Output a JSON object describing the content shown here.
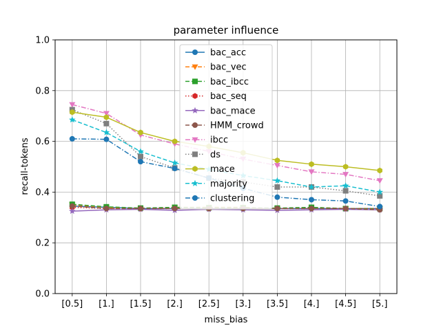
{
  "chart_data": {
    "type": "line",
    "title": "parameter influence",
    "xlabel": "miss_bias",
    "ylabel": "recall-tokens",
    "categories": [
      "[0.5]",
      "[1.]",
      "[1.5]",
      "[2.]",
      "[2.5]",
      "[3.]",
      "[3.5]",
      "[4.]",
      "[4.5]",
      "[5.]"
    ],
    "ylim": [
      0.0,
      1.0
    ],
    "yticks": [
      "0.0",
      "0.2",
      "0.4",
      "0.6",
      "0.8",
      "1.0"
    ],
    "grid": true,
    "legend_position": "upper center",
    "series": [
      {
        "name": "bac_acc",
        "color": "#1f77b4",
        "dash": "solid",
        "marker": "circle",
        "values": [
          0.345,
          0.34,
          0.335,
          0.335,
          0.335,
          0.335,
          0.335,
          0.335,
          0.335,
          0.335
        ]
      },
      {
        "name": "bac_vec",
        "color": "#ff7f0e",
        "dash": "dashed",
        "marker": "triangle-down",
        "values": [
          0.35,
          0.34,
          0.335,
          0.34,
          0.34,
          0.34,
          0.335,
          0.34,
          0.335,
          0.335
        ]
      },
      {
        "name": "bac_ibcc",
        "color": "#2ca02c",
        "dash": "dashed",
        "marker": "square",
        "values": [
          0.352,
          0.342,
          0.337,
          0.34,
          0.338,
          0.338,
          0.337,
          0.34,
          0.335,
          0.335
        ]
      },
      {
        "name": "bac_seq",
        "color": "#d62728",
        "dash": "dotted",
        "marker": "hexagon",
        "values": [
          0.34,
          0.335,
          0.335,
          0.335,
          0.335,
          0.335,
          0.335,
          0.335,
          0.335,
          0.335
        ]
      },
      {
        "name": "bac_mace",
        "color": "#9467bd",
        "dash": "solid",
        "marker": "star",
        "values": [
          0.325,
          0.33,
          0.332,
          0.328,
          0.332,
          0.33,
          0.328,
          0.33,
          0.332,
          0.33
        ]
      },
      {
        "name": "HMM_crowd",
        "color": "#8c564b",
        "dash": "dashed",
        "marker": "circle",
        "values": [
          0.345,
          0.335,
          0.335,
          0.335,
          0.335,
          0.335,
          0.335,
          0.335,
          0.335,
          0.33
        ]
      },
      {
        "name": "ibcc",
        "color": "#e377c2",
        "dash": "dashdot",
        "marker": "triangle-down",
        "values": [
          0.745,
          0.71,
          0.625,
          0.59,
          0.56,
          0.53,
          0.505,
          0.48,
          0.47,
          0.445
        ]
      },
      {
        "name": "ds",
        "color": "#7f7f7f",
        "dash": "dotted",
        "marker": "square",
        "values": [
          0.725,
          0.67,
          0.54,
          0.495,
          0.455,
          0.44,
          0.42,
          0.42,
          0.405,
          0.385
        ]
      },
      {
        "name": "mace",
        "color": "#bcbd22",
        "dash": "solid",
        "marker": "hexagon",
        "values": [
          0.715,
          0.695,
          0.635,
          0.6,
          0.58,
          0.555,
          0.525,
          0.51,
          0.5,
          0.485
        ]
      },
      {
        "name": "majority",
        "color": "#17becf",
        "dash": "dashed",
        "marker": "star",
        "values": [
          0.685,
          0.635,
          0.56,
          0.515,
          0.49,
          0.465,
          0.445,
          0.42,
          0.425,
          0.4
        ]
      },
      {
        "name": "clustering",
        "color": "#1f77b4",
        "dash": "dashdot",
        "marker": "circle",
        "values": [
          0.61,
          0.608,
          0.52,
          0.493,
          0.455,
          0.415,
          0.38,
          0.37,
          0.365,
          0.343
        ]
      }
    ]
  }
}
